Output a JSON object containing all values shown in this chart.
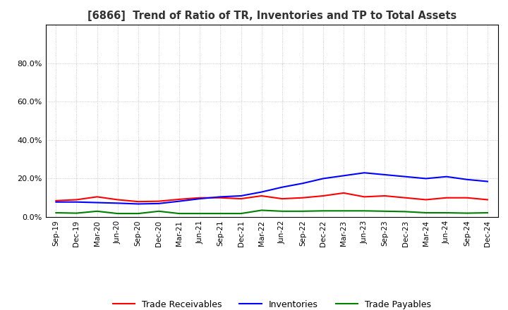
{
  "title": "[6866]  Trend of Ratio of TR, Inventories and TP to Total Assets",
  "x_labels": [
    "Sep-19",
    "Dec-19",
    "Mar-20",
    "Jun-20",
    "Sep-20",
    "Dec-20",
    "Mar-21",
    "Jun-21",
    "Sep-21",
    "Dec-21",
    "Mar-22",
    "Jun-22",
    "Sep-22",
    "Dec-22",
    "Mar-23",
    "Jun-23",
    "Sep-23",
    "Dec-23",
    "Mar-24",
    "Jun-24",
    "Sep-24",
    "Dec-24"
  ],
  "trade_receivables": [
    0.085,
    0.09,
    0.105,
    0.09,
    0.08,
    0.082,
    0.092,
    0.1,
    0.1,
    0.095,
    0.11,
    0.095,
    0.1,
    0.11,
    0.125,
    0.105,
    0.11,
    0.1,
    0.09,
    0.1,
    0.1,
    0.09
  ],
  "inventories": [
    0.078,
    0.078,
    0.075,
    0.072,
    0.068,
    0.07,
    0.082,
    0.095,
    0.105,
    0.11,
    0.13,
    0.155,
    0.175,
    0.2,
    0.215,
    0.23,
    0.22,
    0.21,
    0.2,
    0.21,
    0.195,
    0.185
  ],
  "trade_payables": [
    0.022,
    0.02,
    0.03,
    0.018,
    0.018,
    0.03,
    0.018,
    0.018,
    0.018,
    0.018,
    0.035,
    0.03,
    0.03,
    0.032,
    0.032,
    0.032,
    0.03,
    0.028,
    0.022,
    0.022,
    0.02,
    0.022
  ],
  "tr_color": "#ff0000",
  "inv_color": "#0000ff",
  "tp_color": "#008000",
  "ylim_min": 0.0,
  "ylim_max": 1.0,
  "yticks": [
    0.0,
    0.2,
    0.4,
    0.6,
    0.8
  ],
  "background_color": "#ffffff",
  "grid_color": "#bbbbbb"
}
